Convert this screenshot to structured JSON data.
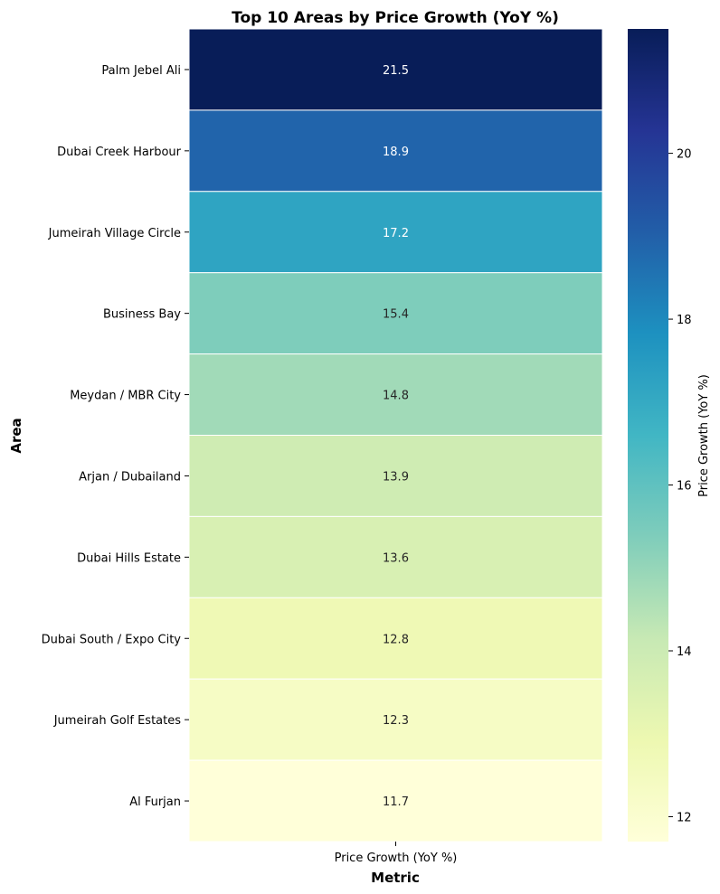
{
  "chart_data": {
    "type": "heatmap",
    "title": "Top 10 Areas by Price Growth (YoY %)",
    "xlabel": "Metric",
    "ylabel": "Area",
    "x_categories": [
      "Price Growth (YoY %)"
    ],
    "y_categories": [
      "Palm Jebel Ali",
      "Dubai Creek Harbour",
      "Jumeirah Village Circle",
      "Business Bay",
      "Meydan / MBR City",
      "Arjan / Dubailand",
      "Dubai Hills Estate",
      "Dubai South / Expo City",
      "Jumeirah Golf Estates",
      "Al Furjan"
    ],
    "values": [
      21.5,
      18.9,
      17.2,
      15.4,
      14.8,
      13.9,
      13.6,
      12.8,
      12.3,
      11.7
    ],
    "value_labels": [
      "21.5",
      "18.9",
      "17.2",
      "15.4",
      "14.8",
      "13.9",
      "13.6",
      "12.8",
      "12.3",
      "11.7"
    ],
    "colorbar": {
      "label": "Price Growth (YoY %)",
      "range": [
        11.7,
        21.5
      ],
      "ticks": [
        12,
        14,
        16,
        18,
        20
      ],
      "tick_labels": [
        "12",
        "14",
        "16",
        "18",
        "20"
      ],
      "colormap": "YlGnBu"
    }
  }
}
